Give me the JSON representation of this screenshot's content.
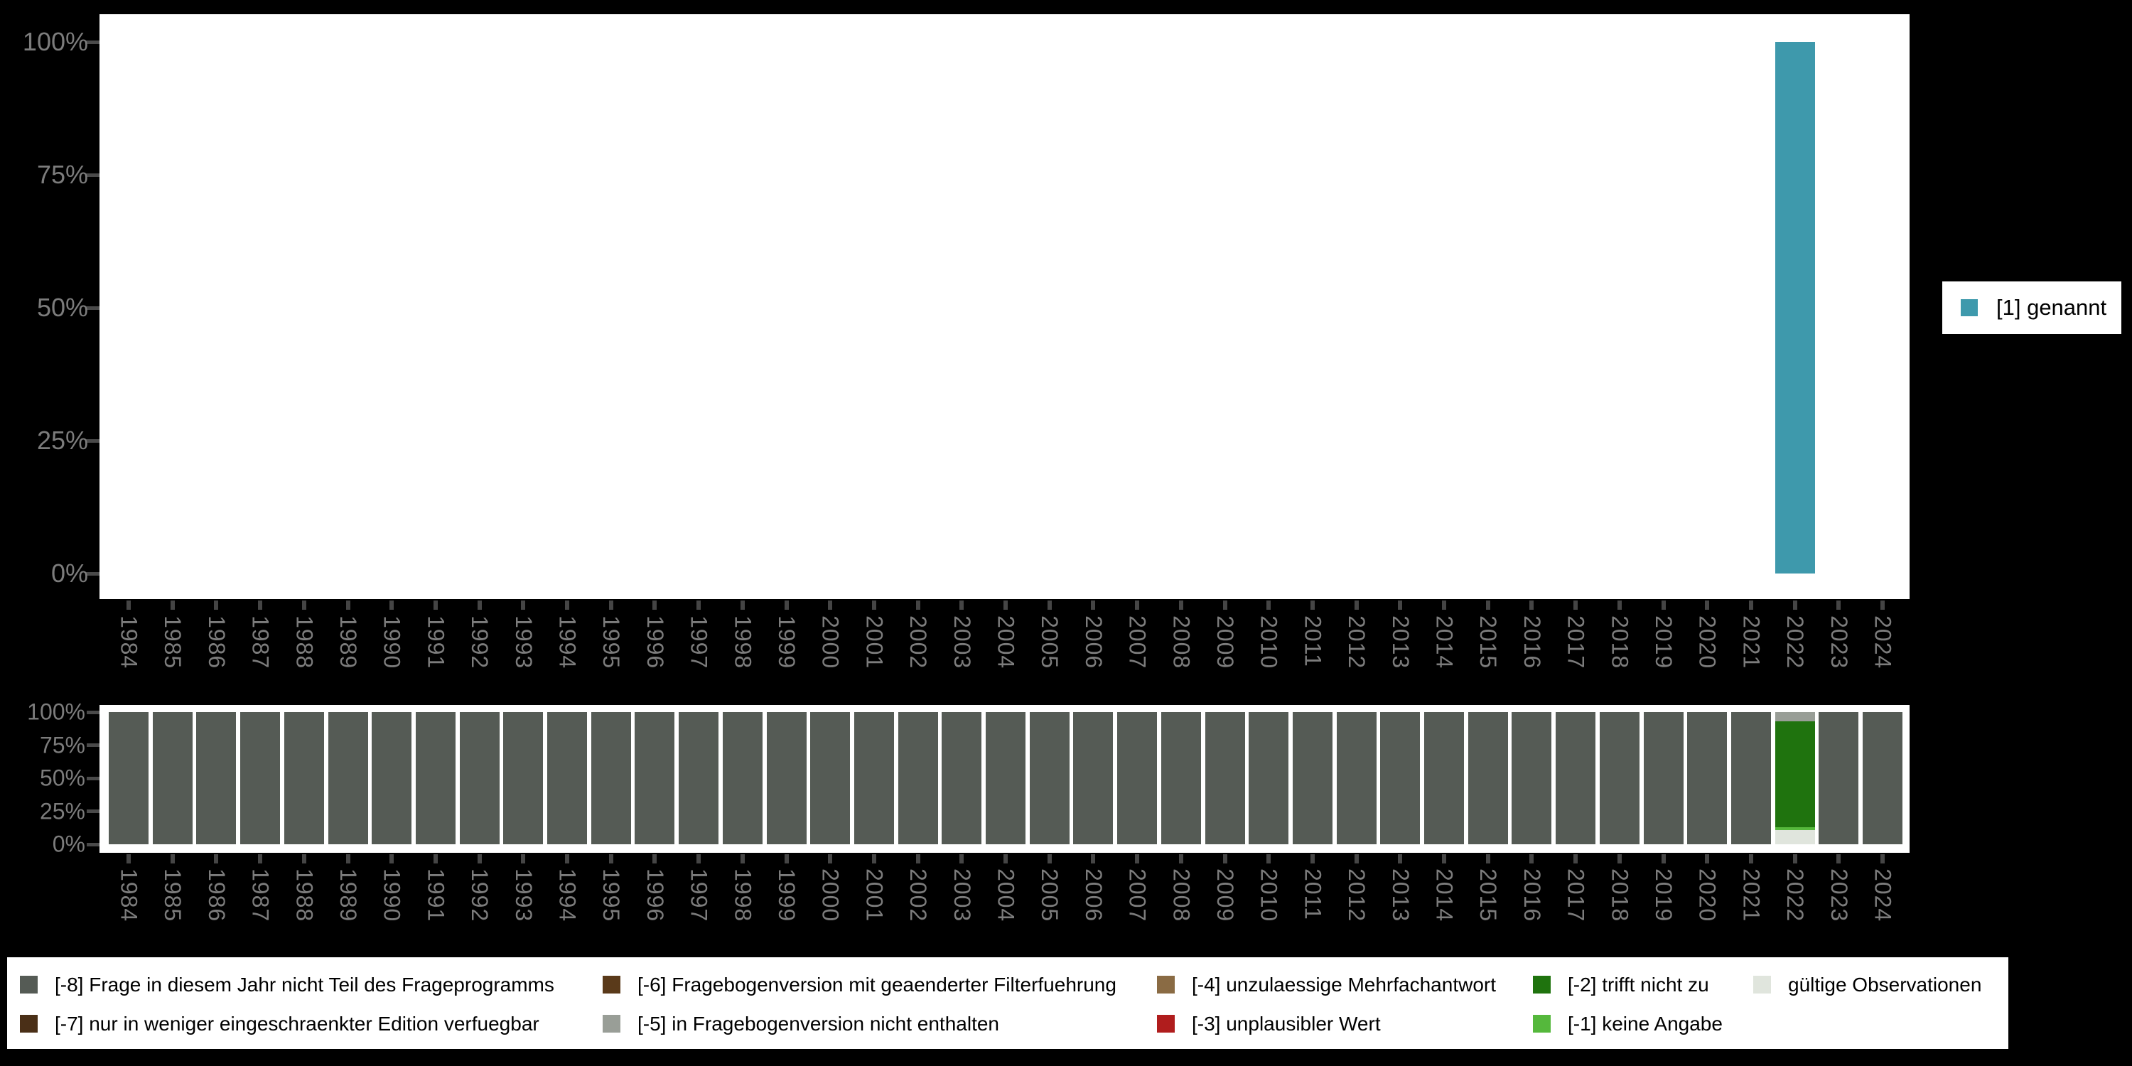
{
  "page": {
    "background": "#000000"
  },
  "top_chart": {
    "y_ticks": [
      "0%",
      "25%",
      "50%",
      "75%",
      "100%"
    ],
    "legend": {
      "label": "[1] genannt",
      "color": "#3E99AC",
      "position": "right"
    }
  },
  "bottom_chart": {
    "y_ticks": [
      "0%",
      "25%",
      "50%",
      "75%",
      "100%"
    ]
  },
  "bottom_legend": {
    "items": [
      {
        "label": "[-8] Frage in diesem Jahr nicht Teil des Frageprogramms",
        "color": "#555B55",
        "row": 1,
        "col": 1
      },
      {
        "label": "[-7] nur in weniger eingeschraenkter Edition verfuegbar",
        "color": "#4A2F17",
        "row": 2,
        "col": 1
      },
      {
        "label": "[-6] Fragebogenversion mit geaenderter Filterfuehrung",
        "color": "#5A3A1A",
        "row": 1,
        "col": 2
      },
      {
        "label": "[-5] in Fragebogenversion nicht enthalten",
        "color": "#999E97",
        "row": 2,
        "col": 2
      },
      {
        "label": "[-4] unzulaessige Mehrfachantwort",
        "color": "#8A6B44",
        "row": 1,
        "col": 3
      },
      {
        "label": "[-3] unplausibler Wert",
        "color": "#B01D1D",
        "row": 2,
        "col": 3
      },
      {
        "label": "[-2] trifft nicht zu",
        "color": "#1F730E",
        "row": 1,
        "col": 4
      },
      {
        "label": "[-1] keine Angabe",
        "color": "#55B83C",
        "row": 2,
        "col": 4
      },
      {
        "label": "gültige Observationen",
        "color": "#E0E5DD",
        "row": 1,
        "col": 5
      }
    ]
  },
  "chart_data": [
    {
      "type": "bar",
      "title": "",
      "xlabel": "",
      "ylabel": "",
      "ylim": [
        0,
        100
      ],
      "y_tick_labels": [
        "0%",
        "25%",
        "50%",
        "75%",
        "100%"
      ],
      "legend_position": "right",
      "grid": false,
      "x": [
        1984,
        1985,
        1986,
        1987,
        1988,
        1989,
        1990,
        1991,
        1992,
        1993,
        1994,
        1995,
        1996,
        1997,
        1998,
        1999,
        2000,
        2001,
        2002,
        2003,
        2004,
        2005,
        2006,
        2007,
        2008,
        2009,
        2010,
        2011,
        2012,
        2013,
        2014,
        2015,
        2016,
        2017,
        2018,
        2019,
        2020,
        2021,
        2022,
        2023,
        2024
      ],
      "series": [
        {
          "name": "[1] genannt",
          "color": "#3E99AC",
          "values": [
            null,
            null,
            null,
            null,
            null,
            null,
            null,
            null,
            null,
            null,
            null,
            null,
            null,
            null,
            null,
            null,
            null,
            null,
            null,
            null,
            null,
            null,
            null,
            null,
            null,
            null,
            null,
            null,
            null,
            null,
            null,
            null,
            null,
            null,
            null,
            null,
            null,
            null,
            100,
            null,
            null
          ]
        }
      ]
    },
    {
      "type": "stacked-bar",
      "title": "",
      "xlabel": "",
      "ylabel": "",
      "ylim": [
        0,
        100
      ],
      "y_tick_labels": [
        "0%",
        "25%",
        "50%",
        "75%",
        "100%"
      ],
      "legend_position": "bottom",
      "grid": false,
      "x": [
        1984,
        1985,
        1986,
        1987,
        1988,
        1989,
        1990,
        1991,
        1992,
        1993,
        1994,
        1995,
        1996,
        1997,
        1998,
        1999,
        2000,
        2001,
        2002,
        2003,
        2004,
        2005,
        2006,
        2007,
        2008,
        2009,
        2010,
        2011,
        2012,
        2013,
        2014,
        2015,
        2016,
        2017,
        2018,
        2019,
        2020,
        2021,
        2022,
        2023,
        2024
      ],
      "series": [
        {
          "name": "[-8] Frage in diesem Jahr nicht Teil des Frageprogramms",
          "color": "#555B55",
          "values": [
            100,
            100,
            100,
            100,
            100,
            100,
            100,
            100,
            100,
            100,
            100,
            100,
            100,
            100,
            100,
            100,
            100,
            100,
            100,
            100,
            100,
            100,
            100,
            100,
            100,
            100,
            100,
            100,
            100,
            100,
            100,
            100,
            100,
            100,
            100,
            100,
            100,
            100,
            0,
            100,
            100
          ]
        },
        {
          "name": "gültige Observationen",
          "color": "#E0E5DD",
          "values": [
            0,
            0,
            0,
            0,
            0,
            0,
            0,
            0,
            0,
            0,
            0,
            0,
            0,
            0,
            0,
            0,
            0,
            0,
            0,
            0,
            0,
            0,
            0,
            0,
            0,
            0,
            0,
            0,
            0,
            0,
            0,
            0,
            0,
            0,
            0,
            0,
            0,
            0,
            11,
            0,
            0
          ]
        },
        {
          "name": "[-1] keine Angabe",
          "color": "#55B83C",
          "values": [
            0,
            0,
            0,
            0,
            0,
            0,
            0,
            0,
            0,
            0,
            0,
            0,
            0,
            0,
            0,
            0,
            0,
            0,
            0,
            0,
            0,
            0,
            0,
            0,
            0,
            0,
            0,
            0,
            0,
            0,
            0,
            0,
            0,
            0,
            0,
            0,
            0,
            0,
            2,
            0,
            0
          ]
        },
        {
          "name": "[-2] trifft nicht zu",
          "color": "#1F730E",
          "values": [
            0,
            0,
            0,
            0,
            0,
            0,
            0,
            0,
            0,
            0,
            0,
            0,
            0,
            0,
            0,
            0,
            0,
            0,
            0,
            0,
            0,
            0,
            0,
            0,
            0,
            0,
            0,
            0,
            0,
            0,
            0,
            0,
            0,
            0,
            0,
            0,
            0,
            0,
            80,
            0,
            0
          ]
        },
        {
          "name": "[-5] in Fragebogenversion nicht enthalten",
          "color": "#999E97",
          "values": [
            0,
            0,
            0,
            0,
            0,
            0,
            0,
            0,
            0,
            0,
            0,
            0,
            0,
            0,
            0,
            0,
            0,
            0,
            0,
            0,
            0,
            0,
            0,
            0,
            0,
            0,
            0,
            0,
            0,
            0,
            0,
            0,
            0,
            0,
            0,
            0,
            0,
            0,
            7,
            0,
            0
          ]
        }
      ]
    }
  ]
}
